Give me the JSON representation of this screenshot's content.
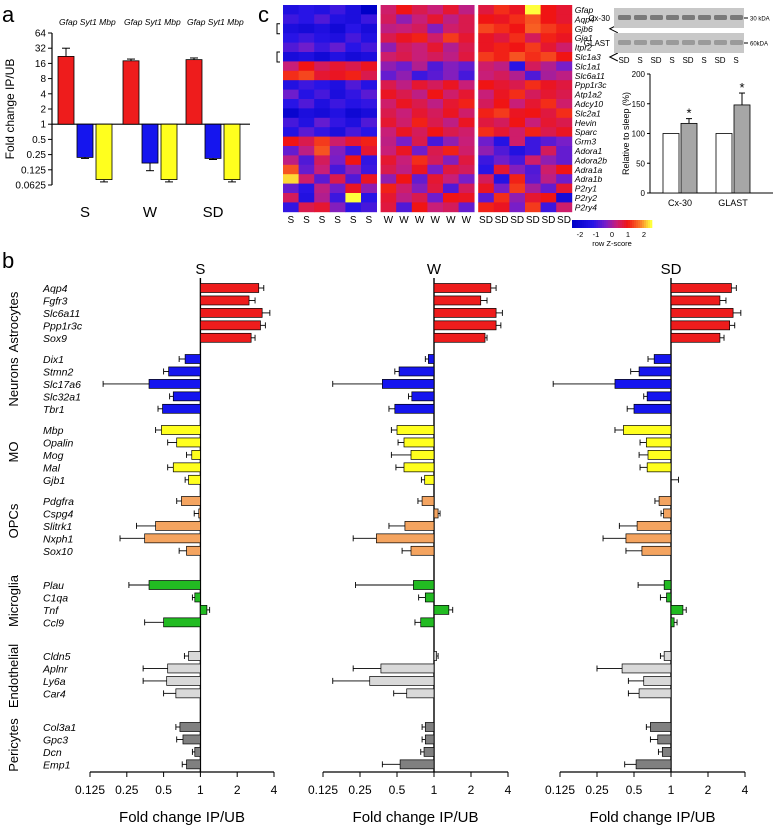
{
  "panel_labels": {
    "a": "a",
    "b": "b",
    "c": "c"
  },
  "colors": {
    "red": "#ee1c1c",
    "blue": "#1515ee",
    "yellow": "#ffff1e",
    "orange": "#f4a460",
    "green": "#22bb22",
    "lightgray": "#d9d9d9",
    "darkgray": "#808080",
    "white": "#ffffff",
    "gray_bar": "#a6a6a6"
  },
  "chart_data": [
    {
      "id": "a",
      "type": "bar",
      "title": "",
      "ylabel": "Fold change IP/UB",
      "yscale": "log2",
      "yticks": [
        64,
        32,
        16,
        8,
        4,
        2,
        1,
        0.5,
        0.25,
        0.125,
        0.0625
      ],
      "yticklabels": [
        "64",
        "32",
        "16",
        "8",
        "4",
        "2",
        "1",
        "0.5",
        "0.25",
        "0.125",
        "0.0625"
      ],
      "groups": [
        "S",
        "W",
        "SD"
      ],
      "gene_header": "Gfap Syt1 Mbp",
      "series": [
        {
          "name": "Gfap",
          "color": "red",
          "values": [
            22,
            18,
            19
          ],
          "errors": [
            10,
            1.5,
            1.5
          ]
        },
        {
          "name": "Syt1",
          "color": "blue",
          "values": [
            0.22,
            0.17,
            0.21
          ],
          "errors": [
            0.01,
            0.05,
            0.01
          ]
        },
        {
          "name": "Mbp",
          "color": "yellow",
          "values": [
            0.08,
            0.08,
            0.08
          ],
          "errors": [
            0.008,
            0.008,
            0.008
          ]
        }
      ]
    },
    {
      "id": "c_heatmap",
      "type": "heatmap",
      "genes": [
        "Gfap",
        "Aqp4",
        "Gjb6",
        "Gja1",
        "Itpr2",
        "Slc1a3",
        "Slc1a1",
        "Slc6a11",
        "Ppp1r3c",
        "Atp1a2",
        "Adcy10",
        "Slc2a1",
        "Hevin",
        "Sparc",
        "Grm3",
        "Adora1",
        "Adora2b",
        "Adra1a",
        "Adra1b",
        "P2ry1",
        "P2ry2",
        "P2ry4"
      ],
      "marked_genes": [
        "Gjb6",
        "Slc1a3"
      ],
      "samples": [
        "S",
        "S",
        "S",
        "S",
        "S",
        "S",
        "W",
        "W",
        "W",
        "W",
        "W",
        "W",
        "SD",
        "SD",
        "SD",
        "SD",
        "SD",
        "SD"
      ],
      "colorbar": {
        "label": "row Z-score",
        "ticks": [
          "-2",
          "-1",
          "0",
          "1",
          "2"
        ],
        "min": -2.5,
        "max": 2.5
      },
      "values": [
        [
          -1.5,
          -1.2,
          -1.4,
          -1.0,
          -1.6,
          -2.6,
          0.4,
          1.0,
          0.6,
          0.3,
          0.8,
          0.2,
          0.7,
          1.2,
          0.9,
          2.5,
          1.0,
          0.8
        ],
        [
          -1.0,
          -1.2,
          -0.8,
          -1.4,
          -1.6,
          -1.0,
          0.5,
          -0.2,
          0.3,
          0.8,
          0.2,
          0.6,
          1.0,
          0.9,
          1.2,
          1.5,
          1.0,
          0.8
        ],
        [
          -1.6,
          -1.8,
          -1.5,
          -1.9,
          -1.2,
          -1.7,
          0.2,
          0.3,
          0.5,
          -0.3,
          0.4,
          0.6,
          1.4,
          1.2,
          1.0,
          1.6,
          1.3,
          1.1
        ],
        [
          -1.2,
          -1.0,
          -1.3,
          -1.5,
          -0.9,
          -1.4,
          0.6,
          0.9,
          1.1,
          0.4,
          1.3,
          0.8,
          0.9,
          0.7,
          1.2,
          0.5,
          1.1,
          0.9
        ],
        [
          -0.8,
          -0.5,
          -1.0,
          -0.6,
          -1.2,
          -0.9,
          -0.2,
          0.5,
          0.3,
          0.8,
          0.1,
          0.6,
          0.9,
          1.1,
          1.0,
          1.3,
          0.8,
          0.4
        ],
        [
          -1.7,
          -1.5,
          -1.9,
          -1.4,
          -1.8,
          -1.6,
          0.4,
          0.6,
          0.3,
          0.5,
          0.2,
          0.7,
          1.3,
          1.1,
          1.5,
          1.2,
          1.4,
          1.0
        ],
        [
          0.3,
          1.0,
          0.5,
          0.8,
          0.6,
          0.9,
          -0.2,
          -0.5,
          0.1,
          -0.8,
          -0.3,
          -0.6,
          0.4,
          0.2,
          -1.2,
          0.5,
          0.1,
          -0.4
        ],
        [
          1.2,
          1.4,
          0.8,
          0.9,
          1.1,
          0.6,
          -0.6,
          -0.2,
          -1.0,
          -0.7,
          -0.3,
          -0.9,
          0.3,
          0.5,
          0.1,
          -0.8,
          0.0,
          0.2
        ],
        [
          -1.4,
          -1.0,
          -1.2,
          -1.5,
          -0.8,
          -1.3,
          0.6,
          0.2,
          0.8,
          0.5,
          0.9,
          0.3,
          1.0,
          0.8,
          0.6,
          1.2,
          0.9,
          0.7
        ],
        [
          -0.5,
          -1.3,
          -0.9,
          -1.6,
          -1.1,
          -0.7,
          0.9,
          0.6,
          0.2,
          1.0,
          0.4,
          0.8,
          0.3,
          0.9,
          1.2,
          0.5,
          0.8,
          0.6
        ],
        [
          -1.2,
          -0.8,
          -1.5,
          -1.0,
          -1.3,
          -1.1,
          0.4,
          0.9,
          0.6,
          0.2,
          0.8,
          1.1,
          0.5,
          1.0,
          0.3,
          0.8,
          1.2,
          0.4
        ],
        [
          -2.2,
          -1.6,
          -1.8,
          -1.4,
          -2.0,
          -1.7,
          0.6,
          0.3,
          0.8,
          0.5,
          0.9,
          0.4,
          1.1,
          1.3,
          0.9,
          1.0,
          0.7,
          1.2
        ],
        [
          -0.9,
          -1.4,
          -0.6,
          -1.1,
          -1.5,
          -0.8,
          0.8,
          0.4,
          1.1,
          0.6,
          0.2,
          0.9,
          0.7,
          0.5,
          1.0,
          0.3,
          0.8,
          0.6
        ],
        [
          -1.3,
          -0.7,
          -1.1,
          -1.6,
          -0.9,
          -1.2,
          0.3,
          0.9,
          0.5,
          1.0,
          0.6,
          0.4,
          1.2,
          0.8,
          0.4,
          1.1,
          0.6,
          0.9
        ],
        [
          1.0,
          0.6,
          1.3,
          0.4,
          0.8,
          1.1,
          0.2,
          -0.4,
          0.6,
          -0.9,
          -0.2,
          0.3,
          -0.5,
          -1.3,
          0.4,
          -1.0,
          -0.7,
          -0.4
        ],
        [
          -0.6,
          0.2,
          1.5,
          -0.3,
          -1.0,
          0.8,
          0.3,
          0.9,
          -0.5,
          0.6,
          1.1,
          0.4,
          -0.2,
          -0.8,
          -1.4,
          -1.0,
          0.5,
          -0.6
        ],
        [
          0.2,
          -0.8,
          0.5,
          -0.4,
          1.0,
          -1.1,
          0.8,
          0.3,
          1.2,
          0.5,
          -0.3,
          0.7,
          -1.0,
          -0.5,
          -0.9,
          0.4,
          -0.2,
          -0.6
        ],
        [
          1.5,
          -0.6,
          0.3,
          -0.9,
          -0.2,
          -1.0,
          0.6,
          0.2,
          0.9,
          -0.4,
          0.7,
          0.5,
          -1.2,
          0.8,
          -0.3,
          -0.8,
          0.4,
          1.0
        ],
        [
          2.3,
          0.4,
          -0.7,
          0.6,
          -0.8,
          0.9,
          -0.2,
          1.0,
          -0.6,
          0.8,
          0.3,
          -0.4,
          0.5,
          -1.3,
          1.1,
          -0.7,
          0.2,
          -0.5
        ],
        [
          -0.6,
          -1.2,
          0.2,
          -0.5,
          0.9,
          -0.2,
          1.1,
          0.4,
          -0.3,
          0.7,
          -0.8,
          0.5,
          0.9,
          -0.4,
          1.3,
          0.0,
          -0.6,
          0.8
        ],
        [
          0.5,
          -1.4,
          0.1,
          -1.0,
          2.6,
          -1.2,
          0.8,
          0.2,
          0.6,
          -0.5,
          1.0,
          0.9,
          -0.7,
          1.2,
          -0.2,
          0.8,
          1.0,
          -1.8
        ],
        [
          -1.1,
          0.6,
          0.8,
          -0.3,
          -1.2,
          -0.9,
          0.7,
          -0.8,
          1.0,
          0.3,
          0.5,
          -0.6,
          1.1,
          0.9,
          -0.4,
          1.3,
          -1.0,
          0.4
        ]
      ]
    },
    {
      "id": "c_bar",
      "type": "bar",
      "ylabel": "Relative to sleep (%)",
      "ylim": [
        0,
        200
      ],
      "yticks": [
        0,
        50,
        100,
        150,
        200
      ],
      "categories": [
        "Cx-30",
        "GLAST"
      ],
      "series": [
        {
          "name": "S",
          "color": "white",
          "values": [
            100,
            100
          ],
          "errors": [
            0,
            0
          ]
        },
        {
          "name": "SD",
          "color": "gray_bar",
          "values": [
            117,
            148
          ],
          "errors": [
            8,
            20
          ]
        }
      ],
      "annotations": [
        "*",
        "*"
      ]
    },
    {
      "id": "b",
      "type": "bar",
      "orientation": "horizontal",
      "xlabel": "Fold change IP/UB",
      "xscale": "log2",
      "xticks": [
        0.125,
        0.25,
        0.5,
        1,
        2,
        4
      ],
      "xticklabels": [
        "0.125",
        "0.25",
        "0.5",
        "1",
        "2",
        "4"
      ],
      "conditions": [
        "S",
        "W",
        "SD"
      ],
      "groups": [
        {
          "name": "Astrocytes",
          "color": "red",
          "genes": [
            "Aqp4",
            "Fgfr3",
            "Slc6a11",
            "Ppp1r3c",
            "Sox9"
          ],
          "values": {
            "S": [
              3.0,
              2.5,
              3.2,
              3.1,
              2.6
            ],
            "W": [
              2.9,
              2.4,
              3.2,
              3.2,
              2.6
            ],
            "SD": [
              3.1,
              2.5,
              3.2,
              3.0,
              2.5
            ]
          },
          "errors": {
            "S": [
              0.3,
              0.3,
              0.5,
              0.3,
              0.2
            ],
            "W": [
              0.3,
              0.3,
              0.4,
              0.3,
              0.1
            ],
            "SD": [
              0.3,
              0.3,
              0.5,
              0.3,
              0.2
            ]
          }
        },
        {
          "name": "Neurons",
          "color": "blue",
          "genes": [
            "Dix1",
            "Stmn2",
            "Slc17a6",
            "Slc32a1",
            "Tbr1"
          ],
          "values": {
            "S": [
              0.75,
              0.55,
              0.38,
              0.6,
              0.49
            ],
            "W": [
              0.9,
              0.52,
              0.38,
              0.66,
              0.48
            ],
            "SD": [
              0.73,
              0.55,
              0.35,
              0.64,
              0.5
            ]
          },
          "errors": {
            "S": [
              0.08,
              0.05,
              0.22,
              0.04,
              0.04
            ],
            "W": [
              0.05,
              0.04,
              0.23,
              0.04,
              0.05
            ],
            "SD": [
              0.08,
              0.08,
              0.24,
              0.04,
              0.06
            ]
          }
        },
        {
          "name": "MO",
          "color": "yellow",
          "genes": [
            "Mbp",
            "Opalin",
            "Mog",
            "Mal",
            "Gjb1"
          ],
          "values": {
            "S": [
              0.48,
              0.64,
              0.85,
              0.6,
              0.8
            ],
            "W": [
              0.5,
              0.57,
              0.65,
              0.57,
              0.84
            ],
            "SD": [
              0.41,
              0.63,
              0.65,
              0.64,
              1.0
            ]
          },
          "errors": {
            "S": [
              0.05,
              0.1,
              0.08,
              0.06,
              0.05
            ],
            "W": [
              0.05,
              0.06,
              0.2,
              0.08,
              0.05
            ],
            "SD": [
              0.06,
              0.07,
              0.1,
              0.08,
              0.15
            ]
          }
        },
        {
          "name": "OPCs",
          "color": "orange",
          "genes": [
            "Pdgfra",
            "Cspg4",
            "Slitrk1",
            "Nxph1",
            "Sox10"
          ],
          "values": {
            "S": [
              0.7,
              0.97,
              0.43,
              0.35,
              0.77
            ],
            "W": [
              0.8,
              1.08,
              0.58,
              0.34,
              0.65
            ],
            "SD": [
              0.8,
              0.87,
              0.53,
              0.43,
              0.58
            ]
          },
          "errors": {
            "S": [
              0.06,
              0.08,
              0.13,
              0.13,
              0.1
            ],
            "W": [
              0.06,
              0.04,
              0.15,
              0.12,
              0.1
            ],
            "SD": [
              0.06,
              0.04,
              0.15,
              0.15,
              0.15
            ]
          }
        },
        {
          "name": "Microglia",
          "color": "green",
          "genes": [
            "Plau",
            "C1qa",
            "Tnf",
            "Ccl9"
          ],
          "values": {
            "S": [
              0.38,
              0.9,
              1.13,
              0.5
            ],
            "W": [
              0.68,
              0.85,
              1.32,
              0.78
            ],
            "SD": [
              0.88,
              0.92,
              1.25,
              1.06
            ]
          },
          "errors": {
            "S": [
              0.12,
              0.04,
              0.06,
              0.15
            ],
            "W": [
              0.45,
              0.1,
              0.1,
              0.08
            ],
            "SD": [
              0.34,
              0.1,
              0.08,
              0.06
            ]
          }
        },
        {
          "name": "Endothelial",
          "color": "lightgray",
          "genes": [
            "Cldn5",
            "Aplnr",
            "Ly6a",
            "Car4"
          ],
          "values": {
            "S": [
              0.8,
              0.54,
              0.53,
              0.63
            ],
            "W": [
              1.05,
              0.37,
              0.3,
              0.6
            ],
            "SD": [
              0.88,
              0.4,
              0.6,
              0.55
            ]
          },
          "errors": {
            "S": [
              0.06,
              0.2,
              0.19,
              0.13
            ],
            "W": [
              0.03,
              0.15,
              0.15,
              0.13
            ],
            "SD": [
              0.06,
              0.15,
              0.15,
              0.1
            ]
          }
        },
        {
          "name": "Pericytes",
          "color": "darkgray",
          "genes": [
            "Col3a1",
            "Gpc3",
            "Dcn",
            "Emp1"
          ],
          "values": {
            "S": [
              0.68,
              0.72,
              0.9,
              0.77
            ],
            "W": [
              0.85,
              0.85,
              0.83,
              0.53
            ],
            "SD": [
              0.68,
              0.78,
              0.85,
              0.52
            ]
          },
          "errors": {
            "S": [
              0.05,
              0.08,
              0.04,
              0.06
            ],
            "W": [
              0.05,
              0.05,
              0.05,
              0.15
            ],
            "SD": [
              0.05,
              0.1,
              0.06,
              0.1
            ]
          }
        }
      ]
    }
  ],
  "western": {
    "rows": [
      {
        "name": "Cx-30",
        "marker": "30 kDA"
      },
      {
        "name": "GLAST",
        "marker": "60kDA"
      }
    ],
    "lanes": [
      "SD",
      "S",
      "SD",
      "S",
      "SD",
      "S",
      "SD",
      "S"
    ]
  }
}
